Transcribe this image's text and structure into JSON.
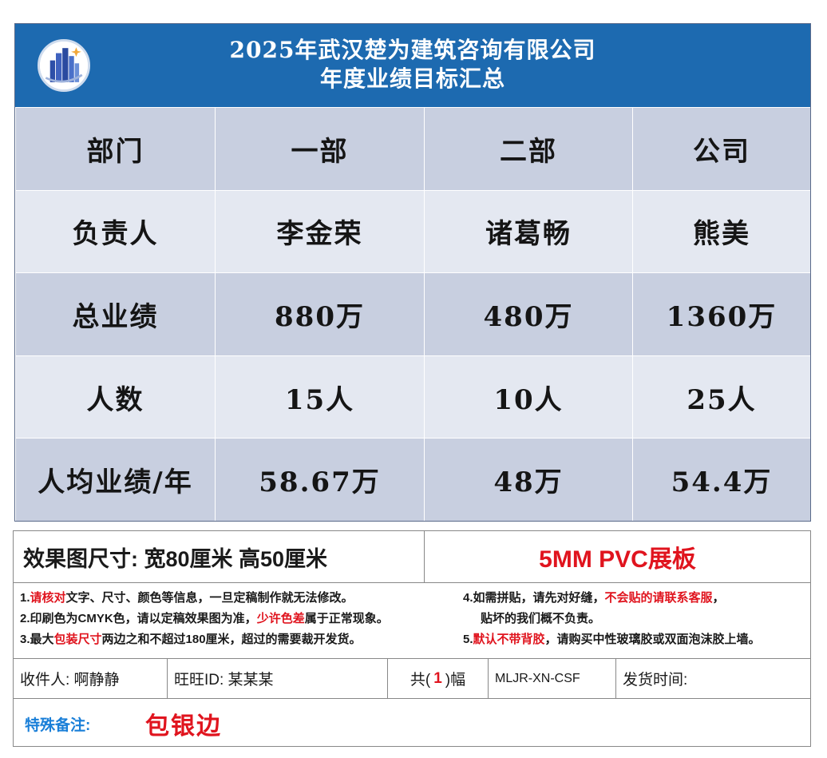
{
  "board": {
    "title_line1": "2025年武汉楚为建筑咨询有限公司",
    "title_line2": "年度业绩目标汇总",
    "logo_icon": "city-buildings-logo-icon",
    "colors": {
      "header_bg": "#1d6ab0",
      "row_dark": "#c8cfe0",
      "row_light": "#e4e8f1"
    },
    "table": {
      "rows": [
        {
          "label": "部门",
          "values": [
            "一部",
            "二部",
            "公司"
          ]
        },
        {
          "label": "负责人",
          "values": [
            "李金荣",
            "诸葛畅",
            "熊美"
          ]
        },
        {
          "label": "总业绩",
          "values": [
            "880万",
            "480万",
            "1360万"
          ]
        },
        {
          "label": "人数",
          "values": [
            "15人",
            "10人",
            "25人"
          ]
        },
        {
          "label": "人均业绩/年",
          "values": [
            "58.67万",
            "48万",
            "54.4万"
          ]
        }
      ]
    }
  },
  "order": {
    "size_text": "效果图尺寸: 宽80厘米  高50厘米",
    "material": "5MM PVC展板",
    "notes": {
      "n1_a": "1.",
      "n1_red": "请核对",
      "n1_b": "文字、尺寸、颜色等信息，一旦定稿制作就无法修改。",
      "n2_a": "2.印刷色为CMYK色，请以定稿效果图为准，",
      "n2_red": "少许色差",
      "n2_b": "属于正常现象。",
      "n3_a": "3.最大",
      "n3_red": "包装尺寸",
      "n3_b": "两边之和不超过180厘米，超过的需要裁开发货。",
      "n4_a": "4.如需拼贴，请先对好缝，",
      "n4_red": "不会贴的请联系客服",
      "n4_b": "，",
      "n4_line2": "贴坏的我们概不负责。",
      "n5_a": "5.",
      "n5_red": "默认不带背胶",
      "n5_b": "，请购买中性玻璃胶或双面泡沫胶上墙。"
    },
    "recipient": "收件人: 啊静静",
    "wangwang": "旺旺ID:  某某某",
    "count_prefix": "共(",
    "count_value": "1",
    "count_suffix": ")幅",
    "code": "MLJR-XN-CSF",
    "ship_time": "发货时间:",
    "remark_label": "特殊备注:",
    "remark_value": "包银边",
    "colors": {
      "red": "#e0141e",
      "blue_label": "#1a7fd8"
    }
  }
}
